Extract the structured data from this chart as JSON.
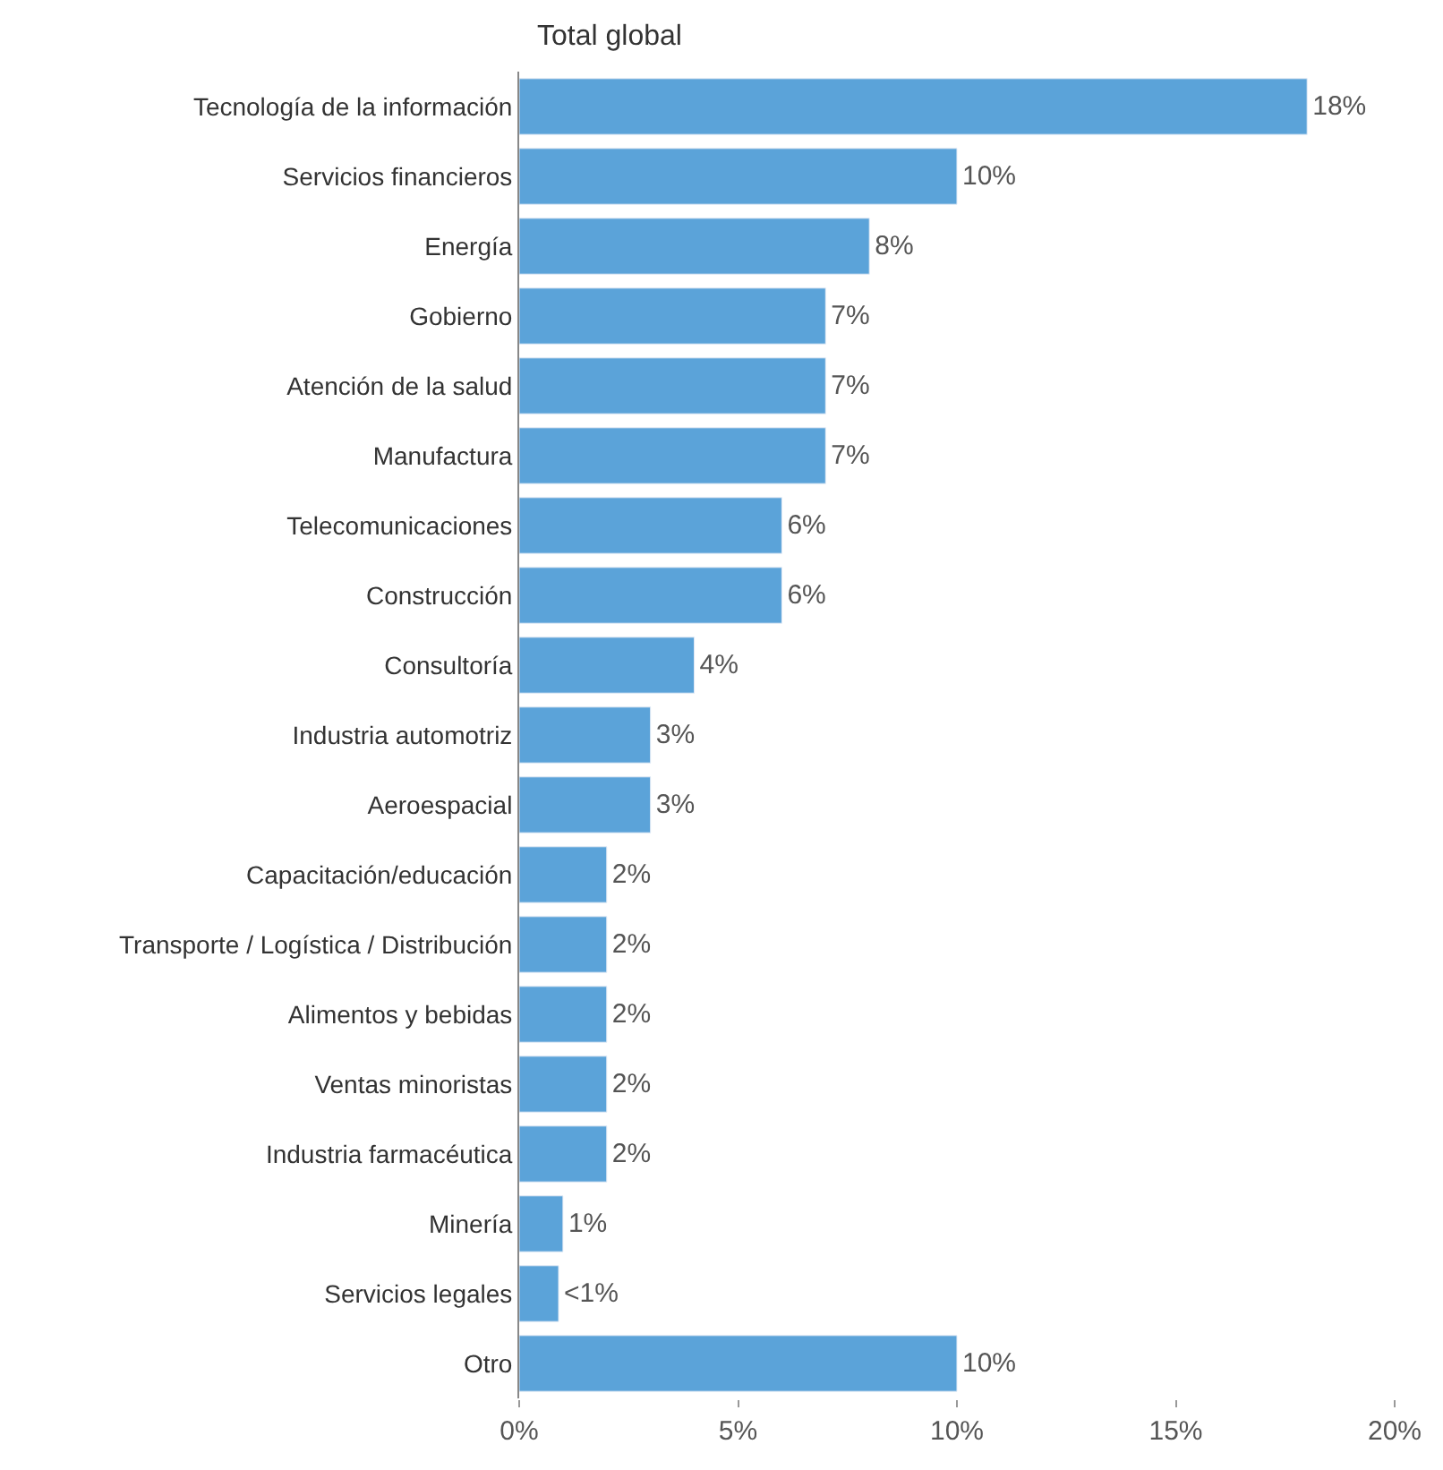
{
  "chart_data": {
    "type": "bar",
    "orientation": "horizontal",
    "title": "Total global",
    "categories": [
      "Tecnología de la información",
      "Servicios financieros",
      "Energía",
      "Gobierno",
      "Atención de la salud",
      "Manufactura",
      "Telecomunicaciones",
      "Construcción",
      "Consultoría",
      "Industria automotriz",
      "Aeroespacial",
      "Capacitación/educación",
      "Transporte / Logística / Distribución",
      "Alimentos y bebidas",
      "Ventas minoristas",
      "Industria farmacéutica",
      "Minería",
      "Servicios legales",
      "Otro"
    ],
    "values": [
      18,
      10,
      8,
      7,
      7,
      7,
      6,
      6,
      4,
      3,
      3,
      2,
      2,
      2,
      2,
      2,
      1,
      0.9,
      10
    ],
    "value_labels": [
      "18%",
      "10%",
      "8%",
      "7%",
      "7%",
      "7%",
      "6%",
      "6%",
      "4%",
      "3%",
      "3%",
      "2%",
      "2%",
      "2%",
      "2%",
      "2%",
      "1%",
      "<1%",
      "10%"
    ],
    "color": "#5ba3d9",
    "xlim": [
      0,
      20
    ],
    "xticks": [
      {
        "value": 0,
        "label": "0%"
      },
      {
        "value": 5,
        "label": "5%"
      },
      {
        "value": 10,
        "label": "10%"
      },
      {
        "value": 15,
        "label": "15%"
      },
      {
        "value": 20,
        "label": "20%"
      }
    ],
    "legend": false
  }
}
